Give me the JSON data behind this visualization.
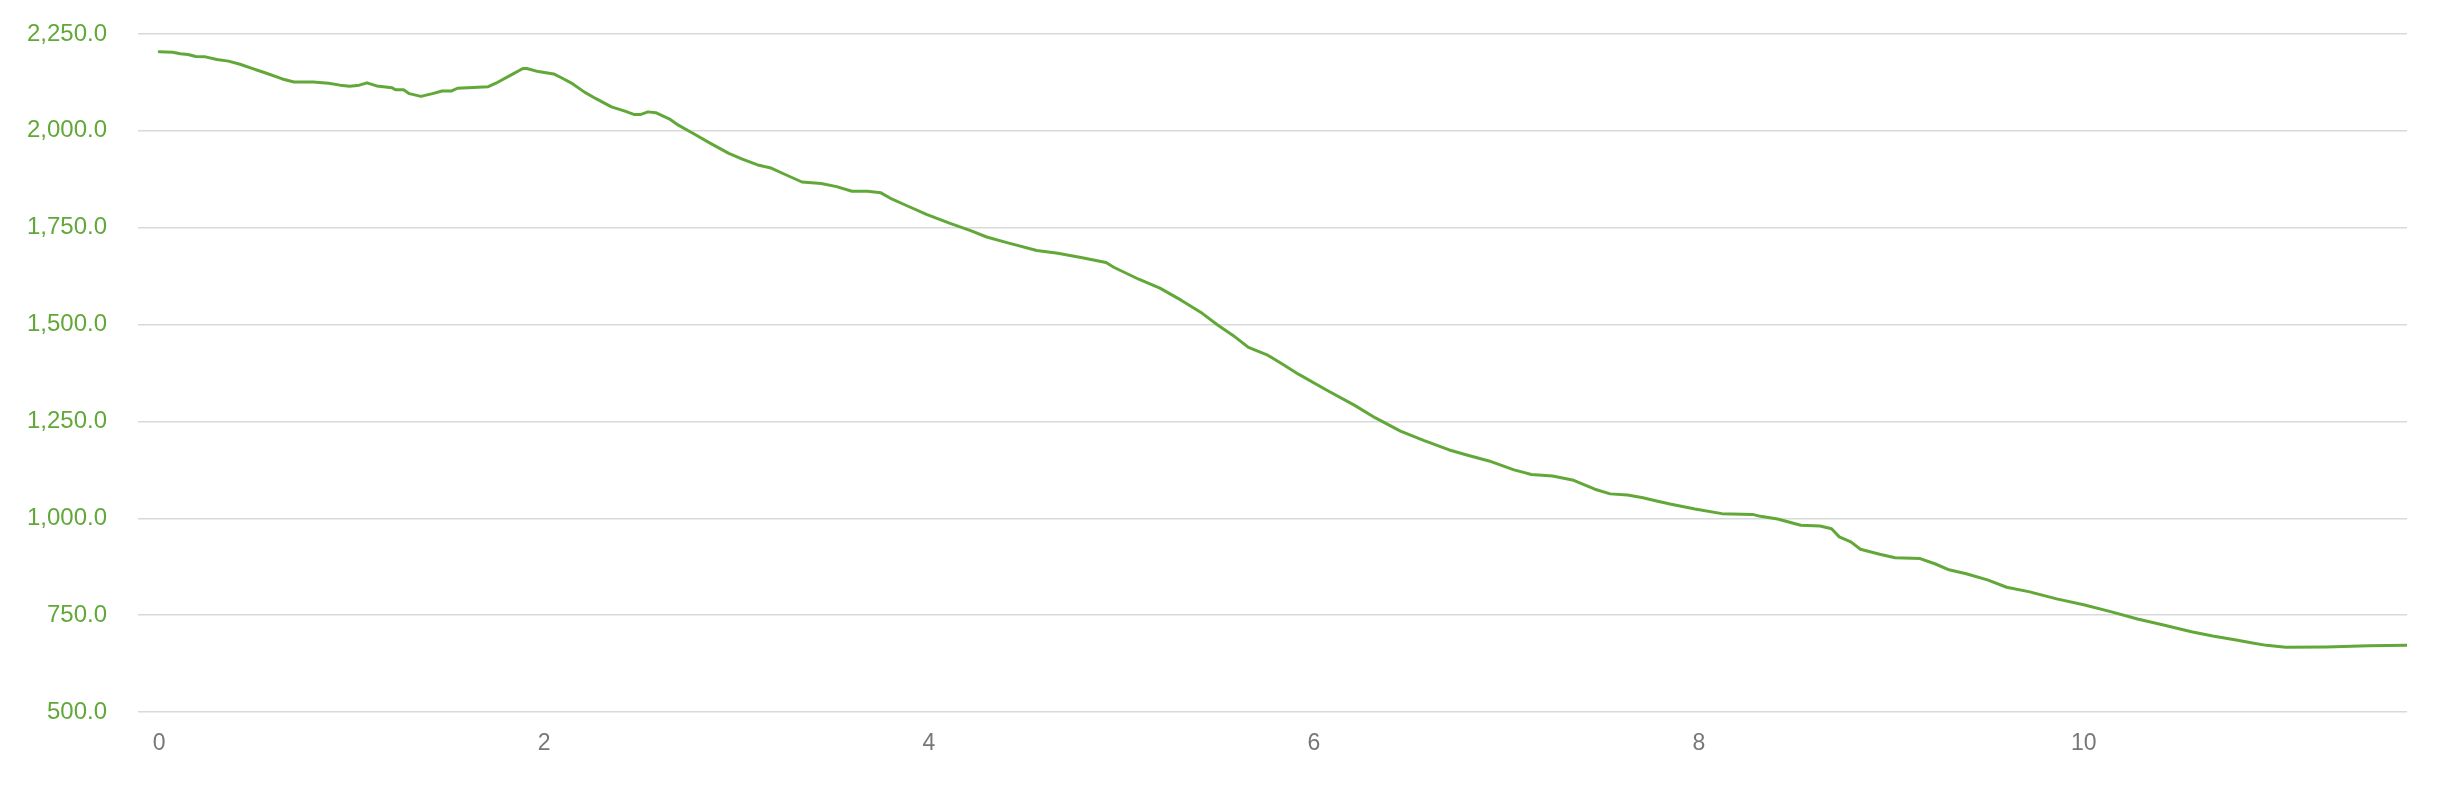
{
  "chart_data": {
    "type": "line",
    "x": [
      0,
      0.07,
      0.11,
      0.15,
      0.19,
      0.24,
      0.3,
      0.36,
      0.42,
      0.49,
      0.55,
      0.64,
      0.7,
      0.8,
      0.88,
      0.94,
      0.99,
      1.04,
      1.08,
      1.13,
      1.21,
      1.23,
      1.27,
      1.3,
      1.36,
      1.42,
      1.47,
      1.52,
      1.55,
      1.71,
      1.75,
      1.82,
      1.89,
      1.91,
      1.97,
      2.05,
      2.09,
      2.14,
      2.21,
      2.27,
      2.35,
      2.42,
      2.47,
      2.5,
      2.54,
      2.58,
      2.65,
      2.7,
      2.78,
      2.86,
      2.96,
      3.03,
      3.11,
      3.18,
      3.25,
      3.34,
      3.44,
      3.52,
      3.6,
      3.68,
      3.75,
      3.8,
      3.88,
      3.99,
      4.11,
      4.22,
      4.3,
      4.41,
      4.56,
      4.67,
      4.79,
      4.92,
      4.96,
      5.09,
      5.2,
      5.31,
      5.42,
      5.5,
      5.58,
      5.66,
      5.76,
      5.84,
      5.92,
      6.07,
      6.21,
      6.32,
      6.45,
      6.57,
      6.7,
      6.79,
      6.91,
      7.04,
      7.13,
      7.24,
      7.35,
      7.46,
      7.54,
      7.63,
      7.71,
      7.77,
      7.85,
      7.98,
      8.12,
      8.28,
      8.32,
      8.41,
      8.53,
      8.63,
      8.69,
      8.73,
      8.79,
      8.84,
      8.94,
      9.02,
      9.15,
      9.23,
      9.3,
      9.39,
      9.5,
      9.6,
      9.72,
      9.86,
      10,
      10.14,
      10.28,
      10.42,
      10.56,
      10.67,
      10.8,
      10.87,
      10.95,
      11.05,
      11.26,
      11.48,
      11.68
    ],
    "series": [
      {
        "color": "#62a839",
        "values": [
          2204,
          2203,
          2199,
          2197,
          2192,
          2191,
          2184,
          2180,
          2172,
          2160,
          2150,
          2134,
          2126,
          2126,
          2123,
          2118,
          2115,
          2118,
          2124,
          2116,
          2111,
          2106,
          2106,
          2096,
          2089,
          2096,
          2103,
          2103,
          2110,
          2114,
          2123,
          2142,
          2161,
          2161,
          2153,
          2147,
          2137,
          2124,
          2100,
          2083,
          2062,
          2051,
          2042,
          2042,
          2049,
          2047,
          2031,
          2014,
          1992,
          1969,
          1942,
          1927,
          1912,
          1904,
          1888,
          1868,
          1864,
          1856,
          1844,
          1844,
          1840,
          1826,
          1808,
          1784,
          1761,
          1742,
          1726,
          1711,
          1691,
          1684,
          1673,
          1660,
          1648,
          1617,
          1594,
          1563,
          1529,
          1499,
          1472,
          1441,
          1421,
          1397,
          1372,
          1330,
          1292,
          1259,
          1225,
          1201,
          1177,
          1164,
          1148,
          1125,
          1113,
          1109,
          1098,
          1075,
          1063,
          1060,
          1053,
          1046,
          1037,
          1024,
          1012,
          1010,
          1005,
          998,
          982,
          980,
          973,
          952,
          939,
          920,
          907,
          898,
          896,
          882,
          867,
          857,
          841,
          822,
          810,
          792,
          777,
          759,
          740,
          724,
          707,
          696,
          685,
          679,
          672,
          667,
          668,
          671,
          672
        ]
      }
    ],
    "xlim": [
      -0.11,
      11.68
    ],
    "xticks": [
      0,
      2,
      4,
      6,
      8,
      10
    ],
    "ylim": [
      500,
      2250
    ],
    "yticks": [
      {
        "value": 500,
        "label": "500.0"
      },
      {
        "value": 750,
        "label": "750.0"
      },
      {
        "value": 1000,
        "label": "1,000.0"
      },
      {
        "value": 1250,
        "label": "1,250.0"
      },
      {
        "value": 1500,
        "label": "1,500.0"
      },
      {
        "value": 1750,
        "label": "1,750.0"
      },
      {
        "value": 2000,
        "label": "2,000.0"
      },
      {
        "value": 2250,
        "label": "2,250.0"
      }
    ],
    "grid": "y",
    "marker": "none",
    "line_style": "solid"
  }
}
